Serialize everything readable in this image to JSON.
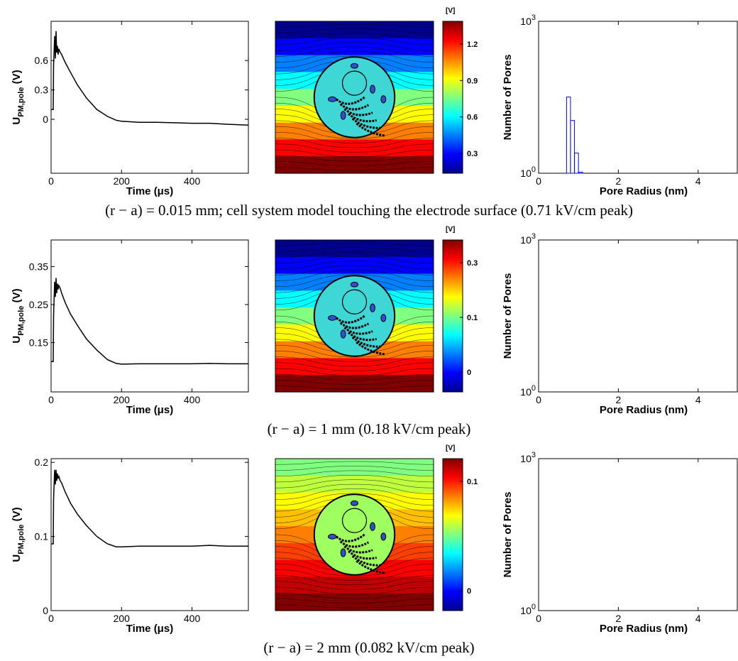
{
  "chart_data": [
    {
      "row": 1,
      "caption": "(r − a) = 0.015 mm; cell system model touching the electrode surface (0.71 kV/cm peak)",
      "voltage_plot": {
        "type": "line",
        "xlabel": "Time (μs)",
        "ylabel": "U_PM,pole (V)",
        "ylabel_main": "U",
        "ylabel_sub": "PM,pole",
        "ylabel_unit": " (V)",
        "xlim": [
          0,
          560
        ],
        "ylim": [
          -0.55,
          1.0
        ],
        "xticks": [
          0,
          200,
          400
        ],
        "yticks": [
          0,
          0.3,
          0.6
        ],
        "ytick_labels": [
          "0",
          "0.3",
          "0.6"
        ],
        "x": [
          0,
          6,
          7,
          10,
          12,
          14,
          16,
          18,
          20,
          22,
          25,
          30,
          40,
          55,
          75,
          100,
          130,
          160,
          185,
          200,
          250,
          300,
          400,
          450,
          500,
          560
        ],
        "y": [
          0.1,
          0.1,
          0.55,
          0.85,
          0.62,
          0.9,
          0.68,
          0.75,
          0.66,
          0.72,
          0.69,
          0.66,
          0.58,
          0.48,
          0.35,
          0.22,
          0.1,
          0.03,
          -0.01,
          -0.02,
          -0.03,
          -0.03,
          -0.04,
          -0.04,
          -0.05,
          -0.06
        ]
      },
      "field_map": {
        "colorbar_unit": "[V]",
        "colorbar_ticks": [
          "0.3",
          "0.6",
          "0.9",
          "1.2"
        ],
        "colors": [
          "#00008f",
          "#0000ff",
          "#0080ff",
          "#00ffff",
          "#80ff80",
          "#ffff00",
          "#ff8000",
          "#ff0000",
          "#800000"
        ],
        "cell_color": "#3fd6d6"
      },
      "pore_histogram": {
        "type": "bar",
        "xlabel": "Pore Radius (nm)",
        "ylabel": "Number of Pores",
        "y_scale": "log",
        "ylim": [
          1,
          1000
        ],
        "yticks": [
          "10^0",
          "10^3"
        ],
        "xlim": [
          0,
          5
        ],
        "xticks": [
          0,
          2,
          4
        ],
        "bar_color": "#0000ff",
        "bins": [
          0.75,
          0.85,
          0.95,
          1.05
        ],
        "counts": [
          32,
          11,
          2.5,
          1.05
        ]
      }
    },
    {
      "row": 2,
      "caption": "(r − a) = 1 mm (0.18 kV/cm peak)",
      "voltage_plot": {
        "type": "line",
        "xlabel": "Time (μs)",
        "ylabel": "U_PM,pole (V)",
        "ylabel_main": "U",
        "ylabel_sub": "PM,pole",
        "ylabel_unit": " (V)",
        "xlim": [
          0,
          560
        ],
        "ylim": [
          0.02,
          0.42
        ],
        "xticks": [
          0,
          200,
          400
        ],
        "yticks": [
          0.15,
          0.25,
          0.35
        ],
        "ytick_labels": [
          "0.15",
          "0.25",
          "0.35"
        ],
        "x": [
          0,
          6,
          7,
          10,
          12,
          14,
          16,
          18,
          20,
          22,
          25,
          30,
          40,
          55,
          75,
          100,
          130,
          160,
          185,
          200,
          250,
          300,
          400,
          450,
          500,
          560
        ],
        "y": [
          0.1,
          0.1,
          0.22,
          0.31,
          0.27,
          0.32,
          0.28,
          0.305,
          0.29,
          0.3,
          0.295,
          0.28,
          0.255,
          0.225,
          0.195,
          0.16,
          0.13,
          0.105,
          0.095,
          0.093,
          0.094,
          0.094,
          0.094,
          0.095,
          0.094,
          0.094
        ]
      },
      "field_map": {
        "colorbar_unit": "[V]",
        "colorbar_ticks": [
          "0",
          "0.1",
          "0.3"
        ],
        "colors": [
          "#00008f",
          "#0000ff",
          "#0080ff",
          "#00ffff",
          "#80ff80",
          "#ffff00",
          "#ff8000",
          "#ff0000",
          "#800000"
        ],
        "cell_color": "#3fd6d6"
      },
      "pore_histogram": {
        "type": "bar",
        "xlabel": "Pore Radius (nm)",
        "ylabel": "Number of Pores",
        "y_scale": "log",
        "ylim": [
          1,
          1000
        ],
        "yticks": [
          "10^0",
          "10^3"
        ],
        "xlim": [
          0,
          5
        ],
        "xticks": [
          0,
          2,
          4
        ],
        "bar_color": "#0000ff",
        "bins": [],
        "counts": []
      }
    },
    {
      "row": 3,
      "caption": "(r − a) = 2 mm (0.082 kV/cm peak)",
      "voltage_plot": {
        "type": "line",
        "xlabel": "Time (μs)",
        "ylabel": "U_PM,pole (V)",
        "ylabel_main": "U",
        "ylabel_sub": "PM,pole",
        "ylabel_unit": " (V)",
        "xlim": [
          0,
          560
        ],
        "ylim": [
          0,
          0.205
        ],
        "xticks": [
          0,
          200,
          400
        ],
        "yticks": [
          0,
          0.1,
          0.2
        ],
        "ytick_labels": [
          "0",
          "0.1",
          "0.2"
        ],
        "x": [
          0,
          6,
          7,
          10,
          12,
          14,
          16,
          18,
          20,
          22,
          25,
          30,
          40,
          55,
          75,
          100,
          130,
          160,
          185,
          200,
          250,
          300,
          400,
          450,
          500,
          560
        ],
        "y": [
          0.09,
          0.09,
          0.15,
          0.19,
          0.17,
          0.19,
          0.175,
          0.185,
          0.178,
          0.182,
          0.176,
          0.172,
          0.16,
          0.145,
          0.13,
          0.115,
          0.1,
          0.09,
          0.086,
          0.086,
          0.087,
          0.087,
          0.087,
          0.088,
          0.087,
          0.087
        ]
      },
      "field_map": {
        "colorbar_unit": "[V]",
        "colorbar_ticks": [
          "0",
          "0.1"
        ],
        "colors": [
          "#80ff80",
          "#c0ff40",
          "#ffff00",
          "#ffc000",
          "#ff8000",
          "#ff4000",
          "#ff0000",
          "#c00000",
          "#800000"
        ],
        "cell_color": "#a0ff60"
      },
      "pore_histogram": {
        "type": "bar",
        "xlabel": "Pore Radius (nm)",
        "ylabel": "Number of Pores",
        "y_scale": "log",
        "ylim": [
          1,
          1000
        ],
        "yticks": [
          "10^0",
          "10^3"
        ],
        "xlim": [
          0,
          5
        ],
        "xticks": [
          0,
          2,
          4
        ],
        "bar_color": "#0000ff",
        "bins": [],
        "counts": []
      }
    }
  ]
}
